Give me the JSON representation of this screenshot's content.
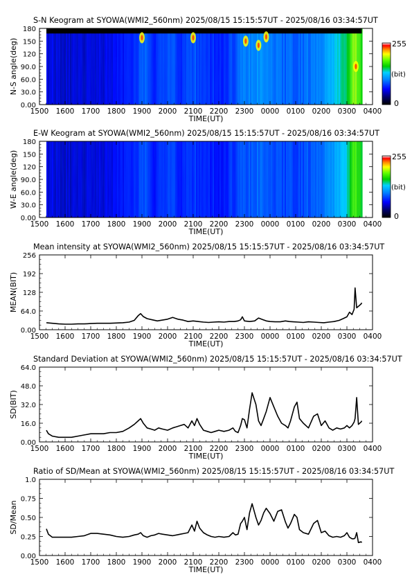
{
  "chart_data": [
    {
      "type": "heatmap",
      "title": "S-N Keogram at SYOWA(WMI2_560nm)    2025/08/15 15:15:57UT - 2025/08/16 03:34:57UT",
      "xlabel": "TIME(UT)",
      "ylabel": "N-S angle(deg)",
      "x_ticks": [
        "1500",
        "1600",
        "1700",
        "1800",
        "1900",
        "2000",
        "2100",
        "2200",
        "2300",
        "0000",
        "0100",
        "0200",
        "0300",
        "0400"
      ],
      "y_ticks": [
        "0.00",
        "30.0",
        "60.0",
        "90.0",
        "120",
        "150",
        "180"
      ],
      "ylim": [
        0,
        180
      ],
      "colorbar": {
        "min_label": "0",
        "max_label": "255",
        "unit_label": "(bit)"
      },
      "no_data_above_deg": 168,
      "brightness_by_hour": [
        [
          15.5,
          0.22
        ],
        [
          16,
          0.2
        ],
        [
          16.5,
          0.2
        ],
        [
          17,
          0.22
        ],
        [
          17.5,
          0.22
        ],
        [
          18,
          0.24
        ],
        [
          18.5,
          0.26
        ],
        [
          19,
          0.36
        ],
        [
          19.5,
          0.28
        ],
        [
          20,
          0.34
        ],
        [
          20.5,
          0.3
        ],
        [
          21,
          0.34
        ],
        [
          21.5,
          0.3
        ],
        [
          22,
          0.28
        ],
        [
          22.5,
          0.32
        ],
        [
          23,
          0.4
        ],
        [
          23.5,
          0.42
        ],
        [
          24,
          0.4
        ],
        [
          24.5,
          0.36
        ],
        [
          25,
          0.36
        ],
        [
          25.5,
          0.38
        ],
        [
          26,
          0.42
        ],
        [
          26.5,
          0.5
        ],
        [
          27,
          0.62
        ],
        [
          27.3,
          0.78
        ],
        [
          27.5,
          0.68
        ],
        [
          27.58,
          0.65
        ]
      ],
      "bright_patches": [
        {
          "time": 19.0,
          "angle": 158
        },
        {
          "time": 21.0,
          "angle": 158
        },
        {
          "time": 23.05,
          "angle": 150
        },
        {
          "time": 23.55,
          "angle": 140
        },
        {
          "time": 23.85,
          "angle": 160
        },
        {
          "time": 27.35,
          "angle": 90
        }
      ]
    },
    {
      "type": "heatmap",
      "title": "E-W Keogram at SYOWA(WMI2_560nm)    2025/08/15 15:15:57UT - 2025/08/16 03:34:57UT",
      "xlabel": "TIME(UT)",
      "ylabel": "W-E angle(deg)",
      "x_ticks": [
        "1500",
        "1600",
        "1700",
        "1800",
        "1900",
        "2000",
        "2100",
        "2200",
        "2300",
        "0000",
        "0100",
        "0200",
        "0300",
        "0400"
      ],
      "y_ticks": [
        "0.00",
        "30.0",
        "60.0",
        "90.0",
        "120",
        "150",
        "180"
      ],
      "ylim": [
        0,
        180
      ],
      "colorbar": {
        "min_label": "0",
        "max_label": "255",
        "unit_label": "(bit)"
      },
      "brightness_by_hour": [
        [
          15.5,
          0.22
        ],
        [
          16,
          0.2
        ],
        [
          16.5,
          0.2
        ],
        [
          17,
          0.22
        ],
        [
          17.5,
          0.22
        ],
        [
          18,
          0.24
        ],
        [
          18.5,
          0.26
        ],
        [
          19,
          0.34
        ],
        [
          19.5,
          0.26
        ],
        [
          20,
          0.32
        ],
        [
          20.5,
          0.28
        ],
        [
          21,
          0.3
        ],
        [
          21.5,
          0.28
        ],
        [
          22,
          0.26
        ],
        [
          22.5,
          0.3
        ],
        [
          23,
          0.34
        ],
        [
          23.5,
          0.36
        ],
        [
          24,
          0.34
        ],
        [
          24.5,
          0.32
        ],
        [
          25,
          0.32
        ],
        [
          25.5,
          0.34
        ],
        [
          26,
          0.38
        ],
        [
          26.5,
          0.44
        ],
        [
          27,
          0.56
        ],
        [
          27.3,
          0.72
        ],
        [
          27.5,
          0.64
        ],
        [
          27.58,
          0.62
        ]
      ]
    },
    {
      "type": "line",
      "title": "Mean intensity at SYOWA(WMI2_560nm)    2025/08/15 15:15:57UT - 2025/08/16 03:34:57UT",
      "xlabel": "TIME(UT)",
      "ylabel": "MEAN(BIT)",
      "x_ticks": [
        "1500",
        "1600",
        "1700",
        "1800",
        "1900",
        "2000",
        "2100",
        "2200",
        "2300",
        "0000",
        "0100",
        "0200",
        "0300",
        "0400"
      ],
      "y_ticks": [
        "0.00",
        "64.0",
        "128",
        "192",
        "256"
      ],
      "ylim": [
        0,
        256
      ],
      "x": [
        15.27,
        15.5,
        15.75,
        16,
        16.25,
        16.5,
        16.75,
        17,
        17.25,
        17.5,
        17.75,
        18,
        18.25,
        18.5,
        18.7,
        18.85,
        18.95,
        19.05,
        19.2,
        19.4,
        19.6,
        19.8,
        20,
        20.2,
        20.4,
        20.6,
        20.8,
        21,
        21.2,
        21.4,
        21.6,
        21.8,
        22,
        22.2,
        22.4,
        22.6,
        22.75,
        22.85,
        22.92,
        23,
        23.2,
        23.4,
        23.55,
        23.7,
        23.85,
        24,
        24.2,
        24.4,
        24.6,
        24.75,
        24.9,
        25.1,
        25.3,
        25.5,
        25.7,
        25.9,
        26.1,
        26.3,
        26.5,
        26.7,
        26.85,
        27,
        27.1,
        27.2,
        27.28,
        27.32,
        27.38,
        27.45,
        27.55,
        27.58
      ],
      "values": [
        24,
        22,
        20,
        19,
        19,
        20,
        20,
        21,
        22,
        22,
        22,
        23,
        24,
        26,
        32,
        48,
        55,
        45,
        38,
        34,
        30,
        33,
        36,
        42,
        36,
        33,
        28,
        30,
        28,
        26,
        25,
        26,
        27,
        26,
        28,
        28,
        30,
        34,
        44,
        30,
        28,
        30,
        40,
        35,
        30,
        28,
        27,
        27,
        30,
        28,
        27,
        26,
        25,
        27,
        26,
        25,
        24,
        26,
        28,
        32,
        38,
        44,
        60,
        52,
        70,
        143,
        75,
        80,
        88,
        92
      ]
    },
    {
      "type": "line",
      "title": "Standard Deviation at SYOWA(WMI2_560nm)    2025/08/15 15:15:57UT - 2025/08/16 03:34:57UT",
      "xlabel": "TIME(UT)",
      "ylabel": "SD(BIT)",
      "x_ticks": [
        "1500",
        "1600",
        "1700",
        "1800",
        "1900",
        "2000",
        "2100",
        "2200",
        "2300",
        "0000",
        "0100",
        "0200",
        "0300",
        "0400"
      ],
      "y_ticks": [
        "0.00",
        "16.0",
        "32.0",
        "48.0",
        "64.0"
      ],
      "ylim": [
        0,
        64
      ],
      "x": [
        15.27,
        15.35,
        15.5,
        15.75,
        16,
        16.25,
        16.5,
        16.75,
        17,
        17.25,
        17.5,
        17.75,
        18,
        18.25,
        18.5,
        18.7,
        18.85,
        18.95,
        19.05,
        19.2,
        19.35,
        19.5,
        19.65,
        19.8,
        20,
        20.2,
        20.35,
        20.5,
        20.65,
        20.8,
        20.95,
        21.05,
        21.15,
        21.25,
        21.4,
        21.55,
        21.7,
        21.85,
        22,
        22.2,
        22.4,
        22.55,
        22.65,
        22.75,
        22.85,
        22.92,
        23.0,
        23.1,
        23.2,
        23.3,
        23.45,
        23.55,
        23.65,
        23.75,
        23.85,
        24.0,
        24.15,
        24.3,
        24.45,
        24.6,
        24.7,
        24.8,
        24.95,
        25.05,
        25.15,
        25.3,
        25.5,
        25.7,
        25.85,
        26.0,
        26.15,
        26.3,
        26.45,
        26.6,
        26.75,
        26.9,
        27.0,
        27.1,
        27.2,
        27.28,
        27.32,
        27.38,
        27.45,
        27.55,
        27.58
      ],
      "values": [
        10,
        7,
        5,
        4,
        4,
        4,
        5,
        6,
        7,
        7,
        7,
        8,
        8,
        9,
        12,
        15,
        18,
        20,
        16,
        12,
        11,
        10,
        12,
        11,
        10,
        12,
        13,
        14,
        15,
        12,
        18,
        14,
        20,
        15,
        10,
        9,
        8,
        9,
        10,
        9,
        10,
        12,
        9,
        8,
        14,
        20,
        19,
        12,
        28,
        42,
        32,
        18,
        14,
        20,
        26,
        38,
        30,
        22,
        16,
        14,
        12,
        18,
        30,
        34,
        20,
        16,
        12,
        22,
        24,
        14,
        18,
        12,
        10,
        12,
        11,
        12,
        14,
        12,
        14,
        17,
        20,
        38,
        15,
        17,
        18
      ]
    },
    {
      "type": "line",
      "title": "Ratio of SD/Mean at SYOWA(WMI2_560nm)    2025/08/15 15:15:57UT - 2025/08/16 03:34:57UT",
      "xlabel": "TIME(UT)",
      "ylabel": "SD/Mean",
      "x_ticks": [
        "1500",
        "1600",
        "1700",
        "1800",
        "1900",
        "2000",
        "2100",
        "2200",
        "2300",
        "0000",
        "0100",
        "0200",
        "0300",
        "0400"
      ],
      "y_ticks": [
        "0.00",
        "0.25",
        "0.50",
        "0.75",
        "1.0"
      ],
      "ylim": [
        0,
        1
      ],
      "x": [
        15.27,
        15.35,
        15.5,
        15.75,
        16,
        16.25,
        16.5,
        16.75,
        17,
        17.25,
        17.5,
        17.75,
        18,
        18.25,
        18.5,
        18.7,
        18.85,
        18.95,
        19.05,
        19.2,
        19.35,
        19.5,
        19.65,
        19.8,
        20,
        20.2,
        20.35,
        20.5,
        20.65,
        20.8,
        20.95,
        21.05,
        21.15,
        21.25,
        21.4,
        21.55,
        21.7,
        21.85,
        22,
        22.2,
        22.4,
        22.55,
        22.65,
        22.75,
        22.85,
        22.92,
        23.0,
        23.1,
        23.2,
        23.3,
        23.45,
        23.55,
        23.65,
        23.75,
        23.85,
        24.0,
        24.15,
        24.3,
        24.45,
        24.6,
        24.7,
        24.8,
        24.95,
        25.05,
        25.15,
        25.3,
        25.5,
        25.7,
        25.85,
        26.0,
        26.15,
        26.3,
        26.45,
        26.6,
        26.75,
        26.9,
        27.0,
        27.1,
        27.2,
        27.28,
        27.32,
        27.38,
        27.45,
        27.55,
        27.58
      ],
      "values": [
        0.35,
        0.28,
        0.24,
        0.24,
        0.24,
        0.24,
        0.25,
        0.26,
        0.29,
        0.29,
        0.28,
        0.27,
        0.25,
        0.24,
        0.25,
        0.27,
        0.28,
        0.3,
        0.26,
        0.24,
        0.26,
        0.27,
        0.29,
        0.28,
        0.27,
        0.26,
        0.27,
        0.28,
        0.29,
        0.3,
        0.4,
        0.32,
        0.45,
        0.36,
        0.3,
        0.27,
        0.25,
        0.24,
        0.25,
        0.24,
        0.25,
        0.3,
        0.27,
        0.28,
        0.42,
        0.45,
        0.5,
        0.34,
        0.56,
        0.68,
        0.5,
        0.4,
        0.46,
        0.56,
        0.62,
        0.55,
        0.45,
        0.58,
        0.6,
        0.44,
        0.36,
        0.42,
        0.54,
        0.5,
        0.34,
        0.3,
        0.28,
        0.42,
        0.46,
        0.3,
        0.32,
        0.26,
        0.24,
        0.25,
        0.24,
        0.26,
        0.3,
        0.24,
        0.22,
        0.22,
        0.23,
        0.3,
        0.17,
        0.18,
        0.17
      ]
    }
  ]
}
